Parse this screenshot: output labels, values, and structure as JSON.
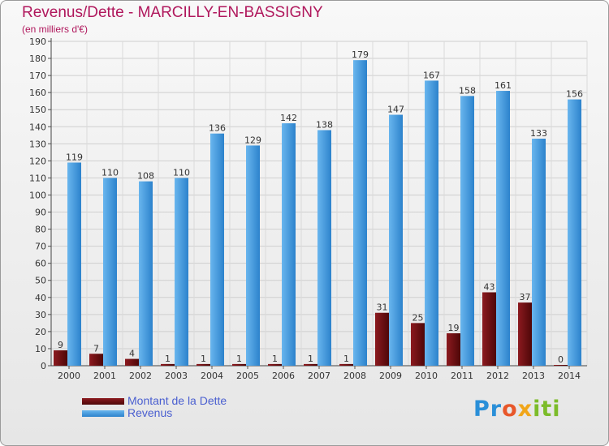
{
  "title": "Revenus/Dette - MARCILLY-EN-BASSIGNY",
  "subtitle": "(en milliers d'€)",
  "colors": {
    "dette": "#6b0d10",
    "revenus": "#3b95dd",
    "title": "#b0175c"
  },
  "legend": {
    "dette_label": "Montant de la Dette",
    "revenus_label": "Revenus"
  },
  "logo": {
    "text": "Proxiti"
  },
  "chart_data": {
    "type": "bar",
    "categories": [
      "2000",
      "2001",
      "2002",
      "2003",
      "2004",
      "2005",
      "2006",
      "2007",
      "2008",
      "2009",
      "2010",
      "2011",
      "2012",
      "2013",
      "2014"
    ],
    "series": [
      {
        "name": "Montant de la Dette",
        "values": [
          9,
          7,
          4,
          1,
          1,
          1,
          1,
          1,
          1,
          31,
          25,
          19,
          43,
          37,
          0
        ]
      },
      {
        "name": "Revenus",
        "values": [
          119,
          110,
          108,
          110,
          136,
          129,
          142,
          138,
          179,
          147,
          167,
          158,
          161,
          133,
          156
        ]
      }
    ],
    "yticks": [
      0,
      10,
      20,
      30,
      40,
      50,
      60,
      70,
      80,
      90,
      100,
      110,
      120,
      130,
      140,
      150,
      160,
      170,
      180,
      190
    ],
    "ylim": [
      0,
      190
    ],
    "grid": true,
    "legend_position": "bottom-left"
  }
}
